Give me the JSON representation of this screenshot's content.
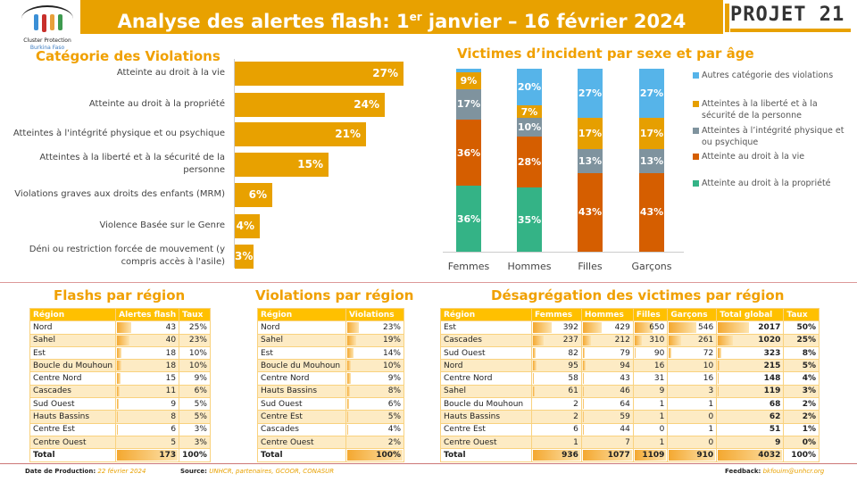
{
  "header": {
    "title_main": "Analyse des alertes flash: 1",
    "title_sup": "er",
    "title_rest": " janvier – 16 février 2024",
    "logo_left_line1": "Cluster Protection",
    "logo_left_line2": "Burkina Faso",
    "logo_right": "PROJET 21"
  },
  "categories": {
    "title": "Catégorie des Violations",
    "items": [
      {
        "label": "Atteinte au droit à la vie",
        "value": 27,
        "text": "27%"
      },
      {
        "label": "Atteinte au droit à la propriété",
        "value": 24,
        "text": "24%"
      },
      {
        "label": "Atteintes à l'intégrité physique et ou psychique",
        "value": 21,
        "text": "21%"
      },
      {
        "label": "Atteintes à la liberté et à la sécurité de la personne",
        "value": 15,
        "text": "15%"
      },
      {
        "label": "Violations graves aux droits des enfants (MRM)",
        "value": 6,
        "text": "6%"
      },
      {
        "label": "Violence Basée sur le Genre",
        "value": 4,
        "text": "4%"
      },
      {
        "label": "Déni ou restriction forcée de mouvement (y compris accès à l'asile)",
        "value": 3,
        "text": "3%"
      }
    ]
  },
  "chart_data": {
    "type": "bar",
    "stacked": true,
    "title": "Victimes d’incident par sexe et par âge",
    "categories": [
      "Femmes",
      "Hommes",
      "Filles",
      "Garçons"
    ],
    "ylim": [
      0,
      100
    ],
    "legend_position": "right",
    "series": [
      {
        "name": "Atteinte au droit à la propriété",
        "color": "#34B386",
        "values": [
          36,
          35,
          0,
          0
        ]
      },
      {
        "name": "Atteinte au droit à la vie",
        "color": "#D55E00",
        "values": [
          36,
          28,
          43,
          43
        ]
      },
      {
        "name": "Atteintes à l’intégrité physique et ou psychique",
        "color": "#7F939E",
        "values": [
          17,
          10,
          13,
          13
        ]
      },
      {
        "name": "Atteintes à la liberté et à la sécurité de la personne",
        "color": "#E69F00",
        "values": [
          9,
          7,
          17,
          17
        ]
      },
      {
        "name": "Autres catégorie des violations",
        "color": "#56B4E9",
        "values": [
          2,
          20,
          27,
          27
        ]
      }
    ]
  },
  "flash": {
    "title": "Flashs par région",
    "headers": [
      "Région",
      "Alertes flash",
      "Taux"
    ],
    "rows": [
      [
        "Nord",
        "43",
        "25%"
      ],
      [
        "Sahel",
        "40",
        "23%"
      ],
      [
        "Est",
        "18",
        "10%"
      ],
      [
        "Boucle du Mouhoun",
        "18",
        "10%"
      ],
      [
        "Centre Nord",
        "15",
        "9%"
      ],
      [
        "Cascades",
        "11",
        "6%"
      ],
      [
        "Sud Ouest",
        "9",
        "5%"
      ],
      [
        "Hauts Bassins",
        "8",
        "5%"
      ],
      [
        "Centre Est",
        "6",
        "3%"
      ],
      [
        "Centre Ouest",
        "5",
        "3%"
      ]
    ],
    "total": [
      "Total",
      "173",
      "100%"
    ]
  },
  "violations": {
    "title": "Violations par région",
    "headers": [
      "Région",
      "Violations"
    ],
    "rows": [
      [
        "Nord",
        "23%"
      ],
      [
        "Sahel",
        "19%"
      ],
      [
        "Est",
        "14%"
      ],
      [
        "Boucle du Mouhoun",
        "10%"
      ],
      [
        "Centre Nord",
        "9%"
      ],
      [
        "Hauts Bassins",
        "8%"
      ],
      [
        "Sud Ouest",
        "6%"
      ],
      [
        "Centre Est",
        "5%"
      ],
      [
        "Cascades",
        "4%"
      ],
      [
        "Centre Ouest",
        "2%"
      ]
    ],
    "total": [
      "Total",
      "100%"
    ]
  },
  "victims": {
    "title": "Désagrégation des victimes par région",
    "headers": [
      "Région",
      "Femmes",
      "Hommes",
      "Filles",
      "Garçons",
      "Total global",
      "Taux"
    ],
    "rows": [
      [
        "Est",
        "392",
        "429",
        "650",
        "546",
        "2017",
        "50%"
      ],
      [
        "Cascades",
        "237",
        "212",
        "310",
        "261",
        "1020",
        "25%"
      ],
      [
        "Sud Ouest",
        "82",
        "79",
        "90",
        "72",
        "323",
        "8%"
      ],
      [
        "Nord",
        "95",
        "94",
        "16",
        "10",
        "215",
        "5%"
      ],
      [
        "Centre Nord",
        "58",
        "43",
        "31",
        "16",
        "148",
        "4%"
      ],
      [
        "Sahel",
        "61",
        "46",
        "9",
        "3",
        "119",
        "3%"
      ],
      [
        "Boucle du Mouhoun",
        "2",
        "64",
        "1",
        "1",
        "68",
        "2%"
      ],
      [
        "Hauts Bassins",
        "2",
        "59",
        "1",
        "0",
        "62",
        "2%"
      ],
      [
        "Centre Est",
        "6",
        "44",
        "0",
        "1",
        "51",
        "1%"
      ],
      [
        "Centre Ouest",
        "1",
        "7",
        "1",
        "0",
        "9",
        "0%"
      ]
    ],
    "total": [
      "Total",
      "936",
      "1077",
      "1109",
      "910",
      "4032",
      "100%"
    ]
  },
  "footer": {
    "date_label": "Date de Production:",
    "date": "22 février 2024",
    "source_label": "Source:",
    "source": "UNHCR, partenaires, GCOOR, CONASUR",
    "feedback_label": "Feedback:",
    "feedback": "bkfouim@unhcr.org"
  },
  "colors": {
    "accent": "#E8A100",
    "table_header": "#FFC000"
  }
}
